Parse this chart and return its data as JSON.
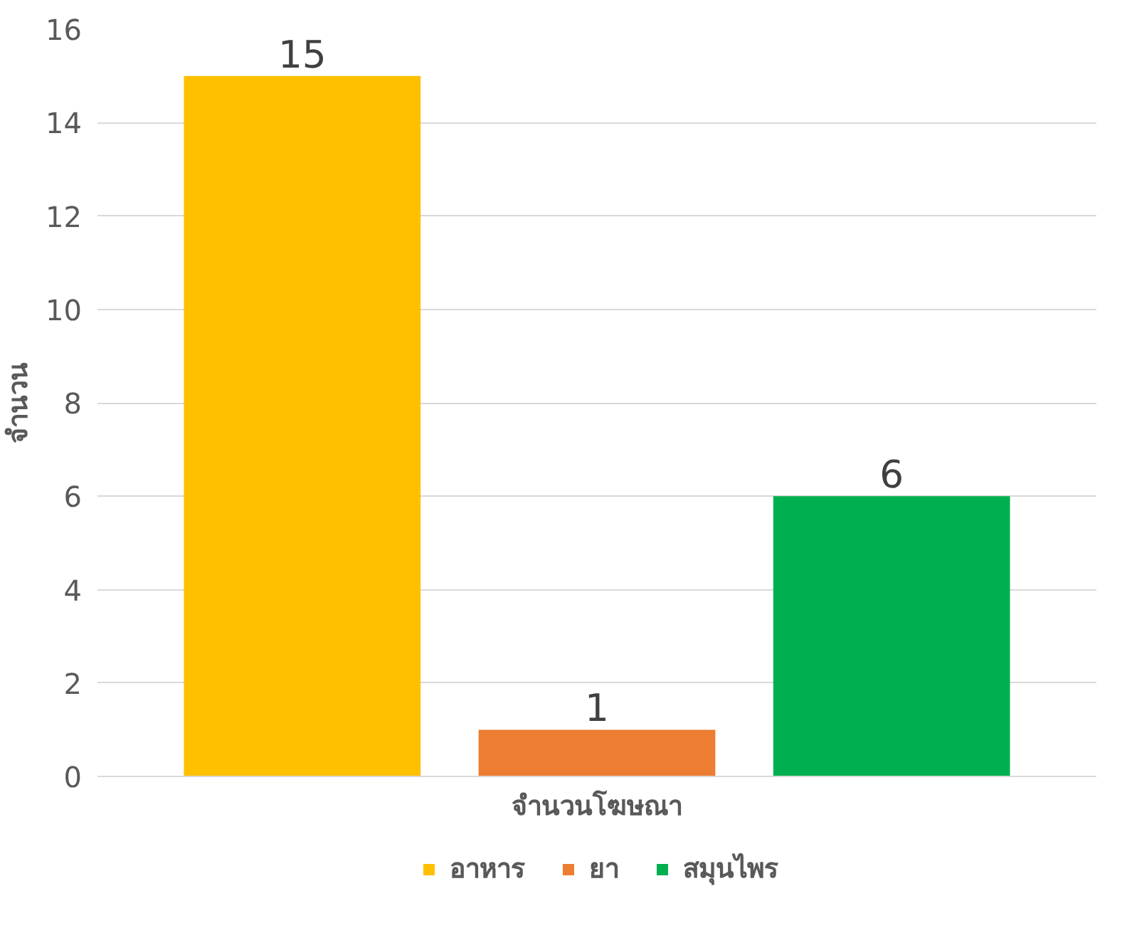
{
  "chart_data": {
    "type": "bar",
    "xlabel": "จำนวนโฆษณา",
    "ylabel": "จำนวน",
    "categories": [
      null
    ],
    "series": [
      {
        "name": "อาหาร",
        "color": "#ffc000",
        "values": [
          15
        ]
      },
      {
        "name": "ยา",
        "color": "#ed7d31",
        "values": [
          1
        ]
      },
      {
        "name": "สมุนไพร",
        "color": "#00b050",
        "values": [
          6
        ]
      }
    ],
    "ylim": [
      0,
      16
    ],
    "yticks": [
      0,
      2,
      4,
      6,
      8,
      10,
      12,
      14,
      16
    ],
    "grid": "y",
    "legend": "bottom",
    "data_labels": true
  }
}
